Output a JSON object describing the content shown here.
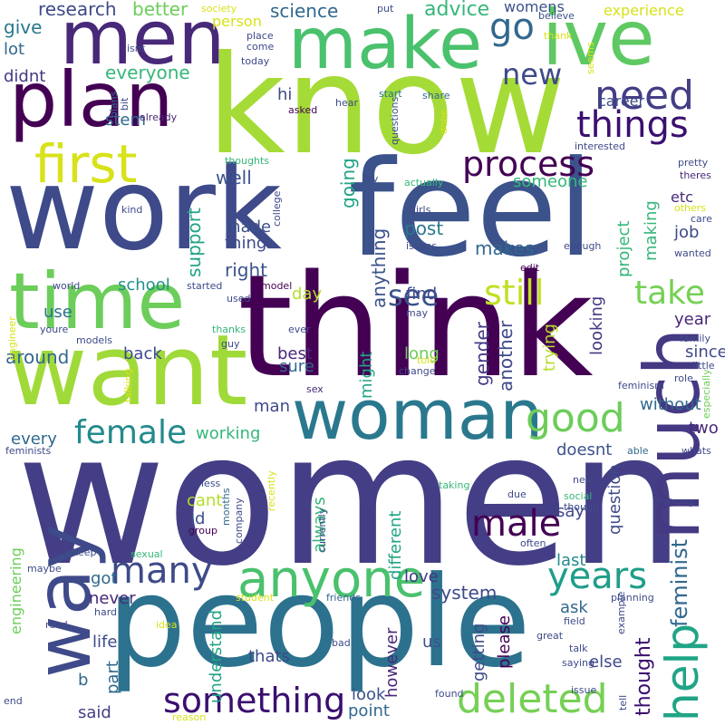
{
  "title": "",
  "words": [
    {
      "text": "women",
      "color": "#433e85"
    },
    {
      "text": "think",
      "color": "#440154"
    },
    {
      "text": "know",
      "color": "#a5db36"
    },
    {
      "text": "feel",
      "color": "#3b528b"
    },
    {
      "text": "work",
      "color": "#3e4a89"
    },
    {
      "text": "people",
      "color": "#2c728e"
    },
    {
      "text": "want",
      "color": "#a0da39"
    },
    {
      "text": "time",
      "color": "#6ccd5a"
    },
    {
      "text": "plan",
      "color": "#440154"
    },
    {
      "text": "woman",
      "color": "#2a788e"
    },
    {
      "text": "ive",
      "color": "#5ec962"
    },
    {
      "text": "make",
      "color": "#4ac16d"
    },
    {
      "text": "men",
      "color": "#482878"
    },
    {
      "text": "way",
      "color": "#3e4a89"
    },
    {
      "text": "much",
      "color": "#443983"
    },
    {
      "text": "help",
      "color": "#20a486"
    },
    {
      "text": "anyone",
      "color": "#4ac16d"
    },
    {
      "text": "first",
      "color": "#d8e219"
    },
    {
      "text": "process",
      "color": "#440154"
    },
    {
      "text": "deleted",
      "color": "#75d054"
    },
    {
      "text": "something",
      "color": "#3b0f70"
    },
    {
      "text": "still",
      "color": "#c2df23"
    },
    {
      "text": "need",
      "color": "#433e85"
    },
    {
      "text": "many",
      "color": "#3e4a89"
    },
    {
      "text": "years",
      "color": "#1f9e89"
    },
    {
      "text": "good",
      "color": "#6ccd5a"
    },
    {
      "text": "male",
      "color": "#440154"
    },
    {
      "text": "female",
      "color": "#238a8d"
    },
    {
      "text": "things",
      "color": "#3b0f70"
    },
    {
      "text": "go",
      "color": "#31688e"
    },
    {
      "text": "new",
      "color": "#3e4a89"
    },
    {
      "text": "see",
      "color": "#3b528b"
    },
    {
      "text": "take",
      "color": "#75d054"
    },
    {
      "text": "feminist",
      "color": "#31688e"
    },
    {
      "text": "thought",
      "color": "#3b0f70"
    },
    {
      "text": "research",
      "color": "#3e4a89"
    },
    {
      "text": "better",
      "color": "#6ccd5a"
    },
    {
      "text": "science",
      "color": "#31688e"
    },
    {
      "text": "advice",
      "color": "#35b779"
    },
    {
      "text": "womens",
      "color": "#3b528b"
    },
    {
      "text": "experience",
      "color": "#d8e219"
    },
    {
      "text": "give",
      "color": "#2a788e"
    },
    {
      "text": "lot",
      "color": "#31688e"
    },
    {
      "text": "didnt",
      "color": "#443983"
    },
    {
      "text": "everyone",
      "color": "#35b779"
    },
    {
      "text": "career",
      "color": "#3e4a89"
    },
    {
      "text": "hi",
      "color": "#3e4a89"
    },
    {
      "text": "stem",
      "color": "#31688e"
    },
    {
      "text": "well",
      "color": "#3b528b"
    },
    {
      "text": "support",
      "color": "#20a486"
    },
    {
      "text": "made",
      "color": "#3b528b"
    },
    {
      "text": "thing",
      "color": "#3e4a89"
    },
    {
      "text": "right",
      "color": "#3b528b"
    },
    {
      "text": "school",
      "color": "#21918c"
    },
    {
      "text": "use",
      "color": "#2c728e"
    },
    {
      "text": "around",
      "color": "#31688e"
    },
    {
      "text": "back",
      "color": "#3e4a89"
    },
    {
      "text": "day",
      "color": "#b5de2b"
    },
    {
      "text": "best",
      "color": "#482878"
    },
    {
      "text": "sure",
      "color": "#31688e"
    },
    {
      "text": "going",
      "color": "#20a486"
    },
    {
      "text": "someone",
      "color": "#35b779"
    },
    {
      "text": "post",
      "color": "#2a788e"
    },
    {
      "text": "find",
      "color": "#3e4a89"
    },
    {
      "text": "makes",
      "color": "#31688e"
    },
    {
      "text": "job",
      "color": "#3e4a89"
    },
    {
      "text": "making",
      "color": "#35b779"
    },
    {
      "text": "project",
      "color": "#35b779"
    },
    {
      "text": "etc",
      "color": "#482878"
    },
    {
      "text": "anything",
      "color": "#3b528b"
    },
    {
      "text": "long",
      "color": "#6ccd5a"
    },
    {
      "text": "looking",
      "color": "#443983"
    },
    {
      "text": "year",
      "color": "#482878"
    },
    {
      "text": "since",
      "color": "#3e4a89"
    },
    {
      "text": "gender",
      "color": "#443983"
    },
    {
      "text": "another",
      "color": "#3e4a89"
    },
    {
      "text": "might",
      "color": "#20a486"
    },
    {
      "text": "trying",
      "color": "#b5de2b"
    },
    {
      "text": "without",
      "color": "#31688e"
    },
    {
      "text": "two",
      "color": "#482878"
    },
    {
      "text": "working",
      "color": "#35b779"
    },
    {
      "text": "every",
      "color": "#31688e"
    },
    {
      "text": "man",
      "color": "#3e4a89"
    },
    {
      "text": "doesnt",
      "color": "#3b528b"
    },
    {
      "text": "cant",
      "color": "#b5de2b"
    },
    {
      "text": "id",
      "color": "#3b528b"
    },
    {
      "text": "always",
      "color": "#35b779"
    },
    {
      "text": "different",
      "color": "#20a486"
    },
    {
      "text": "say",
      "color": "#3e4a89"
    },
    {
      "text": "question",
      "color": "#3e4a89"
    },
    {
      "text": "last",
      "color": "#238a8d"
    },
    {
      "text": "love",
      "color": "#443983"
    },
    {
      "text": "got",
      "color": "#31688e"
    },
    {
      "text": "never",
      "color": "#482878"
    },
    {
      "text": "system",
      "color": "#3e4a89"
    },
    {
      "text": "ask",
      "color": "#31688e"
    },
    {
      "text": "life",
      "color": "#3e4a89"
    },
    {
      "text": "understand",
      "color": "#20a486"
    },
    {
      "text": "however",
      "color": "#482878"
    },
    {
      "text": "us",
      "color": "#3b528b"
    },
    {
      "text": "getting",
      "color": "#3e4a89"
    },
    {
      "text": "please",
      "color": "#440154"
    },
    {
      "text": "else",
      "color": "#3e4a89"
    },
    {
      "text": "part",
      "color": "#31688e"
    },
    {
      "text": "thats",
      "color": "#3e4a89"
    },
    {
      "text": "look",
      "color": "#3b528b"
    },
    {
      "text": "point",
      "color": "#31688e"
    },
    {
      "text": "said",
      "color": "#433e85"
    },
    {
      "text": "b",
      "color": "#31688e"
    },
    {
      "text": "engineering",
      "color": "#6ccd5a"
    },
    {
      "text": "society",
      "color": "#d8e219"
    },
    {
      "text": "put",
      "color": "#3e4a89"
    },
    {
      "text": "believe",
      "color": "#3b528b"
    },
    {
      "text": "isnt",
      "color": "#3e4a89"
    },
    {
      "text": "person",
      "color": "#d8e219"
    },
    {
      "text": "place",
      "color": "#3e4a89"
    },
    {
      "text": "come",
      "color": "#3e4a89"
    },
    {
      "text": "thank",
      "color": "#d8e219"
    },
    {
      "text": "seems",
      "color": "#d8e219"
    },
    {
      "text": "plans",
      "color": "#31688e"
    },
    {
      "text": "bit",
      "color": "#3e4a89"
    },
    {
      "text": "today",
      "color": "#3e4a89"
    },
    {
      "text": "start",
      "color": "#2a788e"
    },
    {
      "text": "share",
      "color": "#31688e"
    },
    {
      "text": "done",
      "color": "#d8e219"
    },
    {
      "text": "already",
      "color": "#482878"
    },
    {
      "text": "asked",
      "color": "#440154"
    },
    {
      "text": "hear",
      "color": "#3e4a89"
    },
    {
      "text": "questions",
      "color": "#3b528b"
    },
    {
      "text": "interested",
      "color": "#3e4a89"
    },
    {
      "text": "pretty",
      "color": "#3e4a89"
    },
    {
      "text": "theres",
      "color": "#482878"
    },
    {
      "text": "thoughts",
      "color": "#35b779"
    },
    {
      "text": "college",
      "color": "#3e4a89"
    },
    {
      "text": "try",
      "color": "#3e4a89"
    },
    {
      "text": "actually",
      "color": "#35b779"
    },
    {
      "text": "girls",
      "color": "#3e4a89"
    },
    {
      "text": "issues",
      "color": "#3e4a89"
    },
    {
      "text": "others",
      "color": "#d8e219"
    },
    {
      "text": "care",
      "color": "#3e4a89"
    },
    {
      "text": "kind",
      "color": "#3e4a89"
    },
    {
      "text": "wanted",
      "color": "#3e4a89"
    },
    {
      "text": "enough",
      "color": "#3e4a89"
    },
    {
      "text": "edit",
      "color": "#440154"
    },
    {
      "text": "world",
      "color": "#3e4a89"
    },
    {
      "text": "started",
      "color": "#3e4a89"
    },
    {
      "text": "model",
      "color": "#440154"
    },
    {
      "text": "used",
      "color": "#3e4a89"
    },
    {
      "text": "engineer",
      "color": "#d8e219"
    },
    {
      "text": "youre",
      "color": "#3e4a89"
    },
    {
      "text": "thanks",
      "color": "#35b779"
    },
    {
      "text": "guy",
      "color": "#3e4a89"
    },
    {
      "text": "ever",
      "color": "#3e4a89"
    },
    {
      "text": "may",
      "color": "#3e4a89"
    },
    {
      "text": "told",
      "color": "#d8e219"
    },
    {
      "text": "change",
      "color": "#3e4a89"
    },
    {
      "text": "family",
      "color": "#3e4a89"
    },
    {
      "text": "little",
      "color": "#3e4a89"
    },
    {
      "text": "role",
      "color": "#3e4a89"
    },
    {
      "text": "especially",
      "color": "#6ccd5a"
    },
    {
      "text": "models",
      "color": "#3e4a89"
    },
    {
      "text": "talking",
      "color": "#d8e219"
    },
    {
      "text": "sex",
      "color": "#482878"
    },
    {
      "text": "feminism",
      "color": "#3e4a89"
    },
    {
      "text": "able",
      "color": "#31688e"
    },
    {
      "text": "whats",
      "color": "#3e4a89"
    },
    {
      "text": "feminists",
      "color": "#3e4a89"
    },
    {
      "text": "less",
      "color": "#3e4a89"
    },
    {
      "text": "recently",
      "color": "#d8e219"
    },
    {
      "text": "next",
      "color": "#3e4a89"
    },
    {
      "text": "taking",
      "color": "#35b779"
    },
    {
      "text": "often",
      "color": "#3e4a89"
    },
    {
      "text": "social",
      "color": "#35b779"
    },
    {
      "text": "due",
      "color": "#3e4a89"
    },
    {
      "text": "wrong",
      "color": "#3e4a89"
    },
    {
      "text": "months",
      "color": "#31688e"
    },
    {
      "text": "company",
      "color": "#3e4a89"
    },
    {
      "text": "group",
      "color": "#440154"
    },
    {
      "text": "currently",
      "color": "#3e4a89"
    },
    {
      "text": "though",
      "color": "#3e4a89"
    },
    {
      "text": "keep",
      "color": "#3e4a89"
    },
    {
      "text": "sexual",
      "color": "#35b779"
    },
    {
      "text": "maybe",
      "color": "#3e4a89"
    },
    {
      "text": "student",
      "color": "#d8e219"
    },
    {
      "text": "friends",
      "color": "#31688e"
    },
    {
      "text": "planning",
      "color": "#3e4a89"
    },
    {
      "text": "hard",
      "color": "#3e4a89"
    },
    {
      "text": "read",
      "color": "#3e4a89"
    },
    {
      "text": "idea",
      "color": "#d8e219"
    },
    {
      "text": "bad",
      "color": "#3e4a89"
    },
    {
      "text": "great",
      "color": "#3e4a89"
    },
    {
      "text": "field",
      "color": "#3e4a89"
    },
    {
      "text": "talk",
      "color": "#3e4a89"
    },
    {
      "text": "saying",
      "color": "#3e4a89"
    },
    {
      "text": "example",
      "color": "#3e4a89"
    },
    {
      "text": "issue",
      "color": "#3e4a89"
    },
    {
      "text": "found",
      "color": "#3e4a89"
    },
    {
      "text": "end",
      "color": "#3e4a89"
    },
    {
      "text": "reason",
      "color": "#d8e219"
    },
    {
      "text": "tell",
      "color": "#3e4a89"
    }
  ]
}
